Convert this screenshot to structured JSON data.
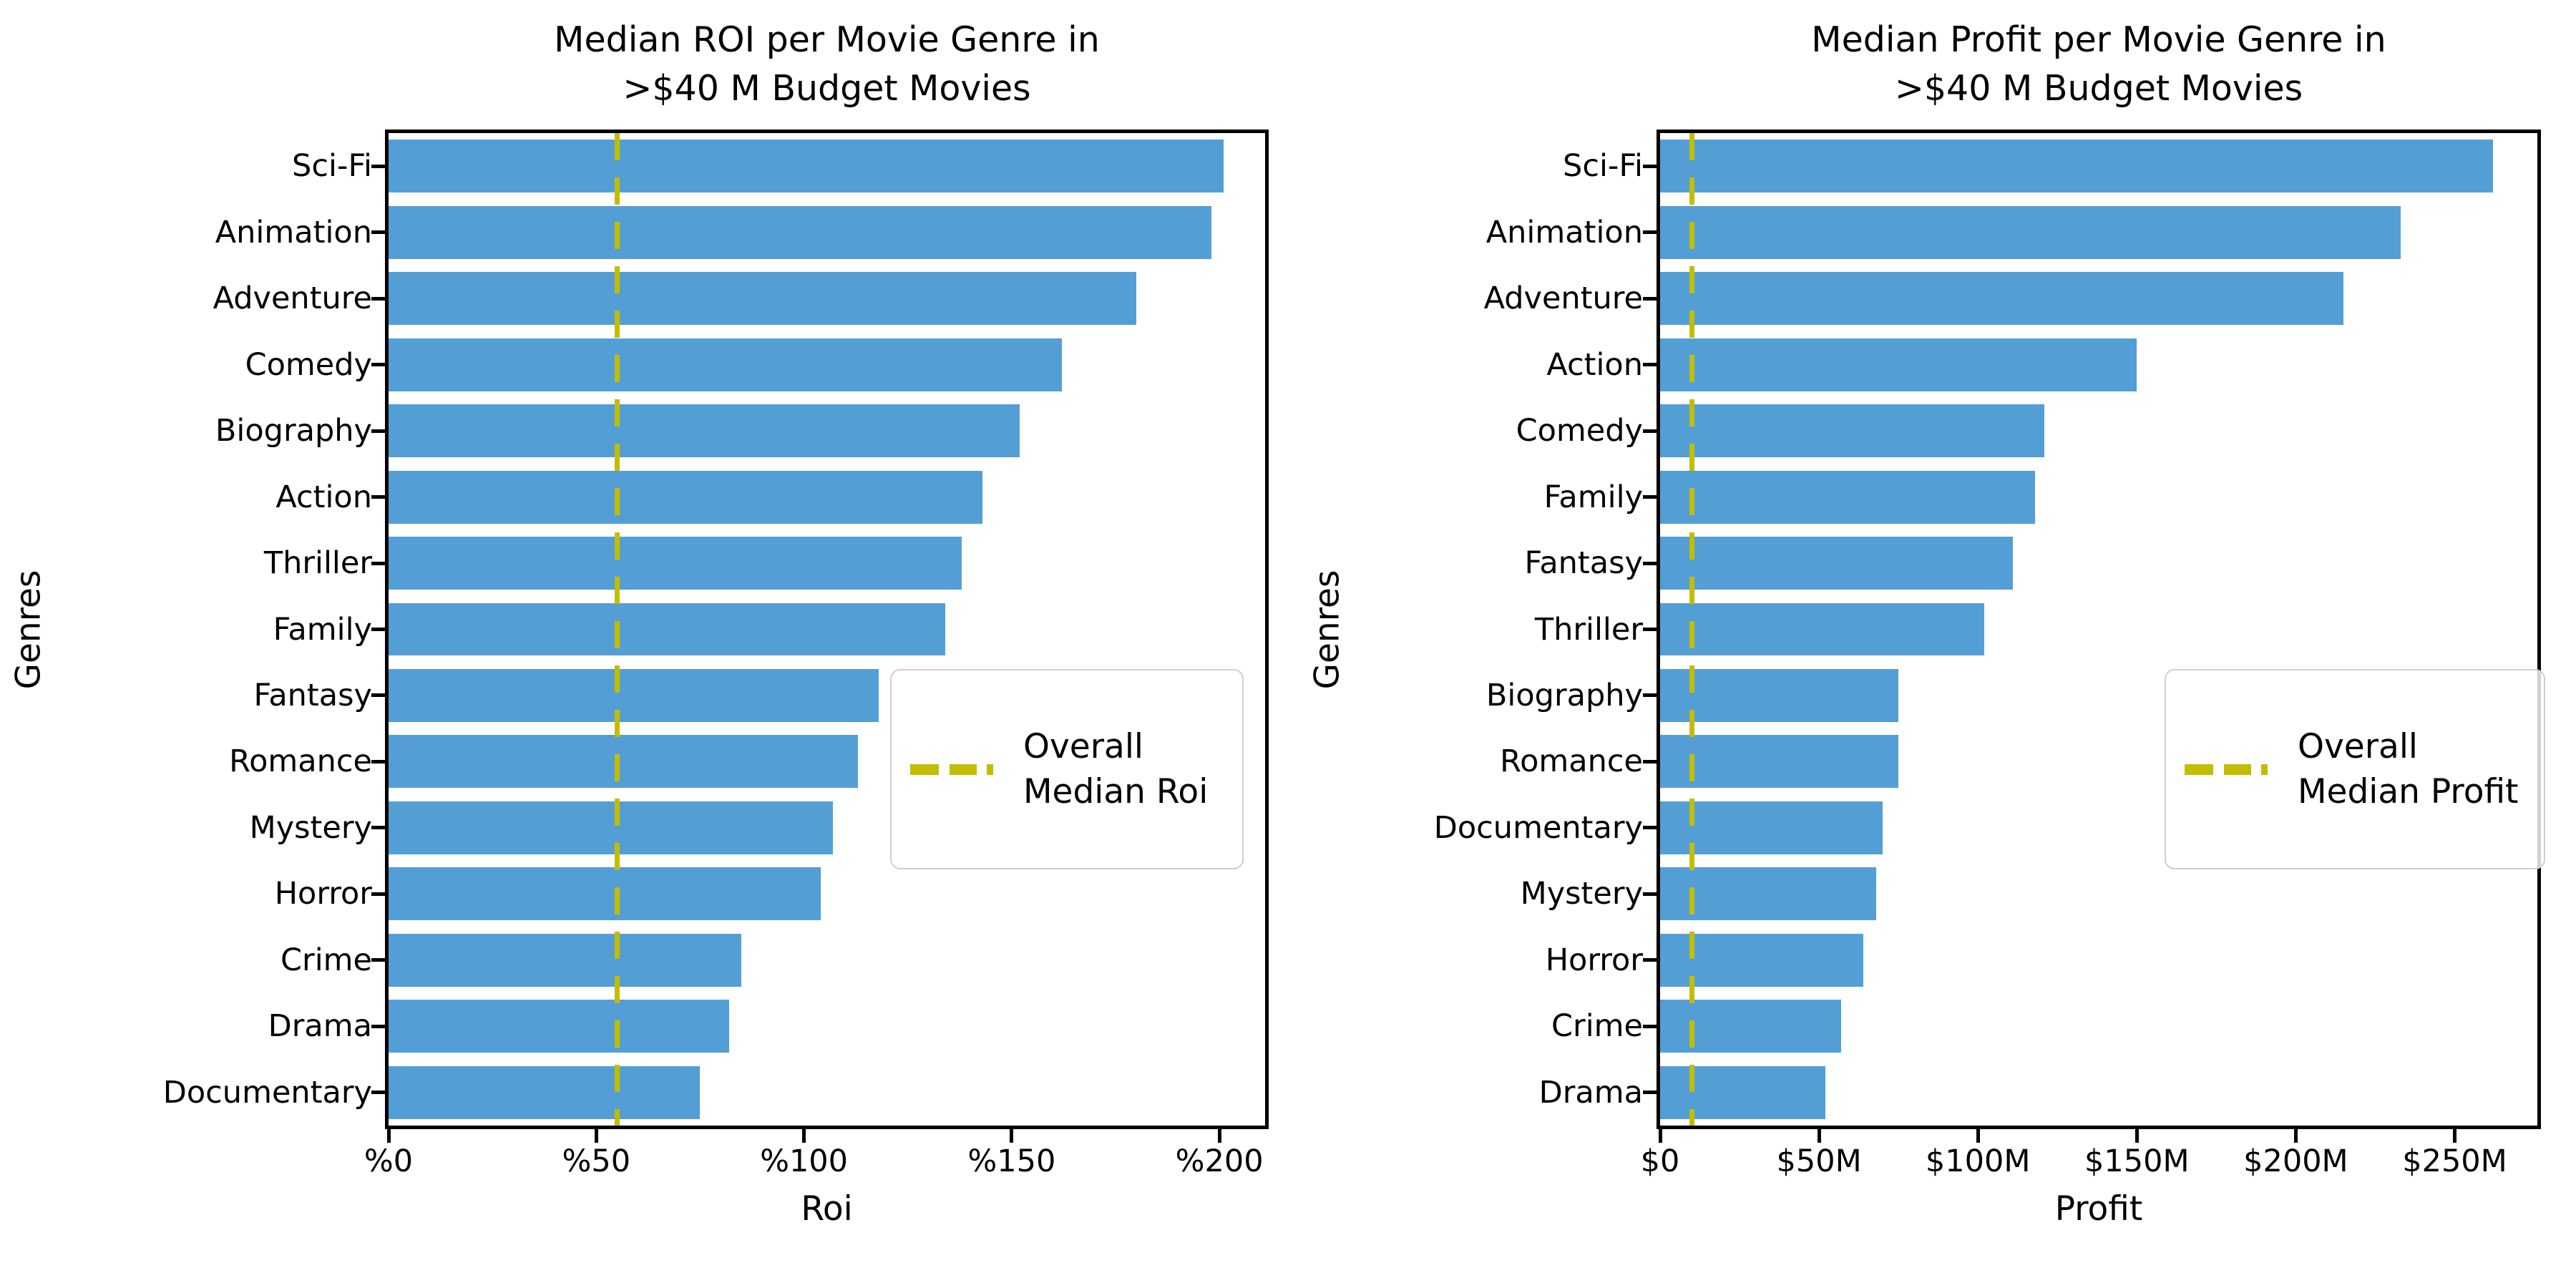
{
  "chart_data": [
    {
      "type": "bar",
      "orientation": "horizontal",
      "title": "Median ROI per Movie Genre in >$40 M Budget Movies",
      "title_lines": [
        "Median ROI per Movie Genre in",
        ">$40 M Budget Movies"
      ],
      "xlabel": "Roi",
      "ylabel": "Genres",
      "categories": [
        "Sci-Fi",
        "Animation",
        "Adventure",
        "Comedy",
        "Biography",
        "Action",
        "Thriller",
        "Family",
        "Fantasy",
        "Romance",
        "Mystery",
        "Horror",
        "Crime",
        "Drama",
        "Documentary"
      ],
      "values": [
        201,
        198,
        180,
        162,
        152,
        143,
        138,
        134,
        118,
        113,
        107,
        104,
        85,
        82,
        75
      ],
      "xticks": {
        "values": [
          0,
          50,
          100,
          150,
          200
        ],
        "labels": [
          "%0",
          "%50",
          "%100",
          "%150",
          "%200"
        ]
      },
      "xlim": [
        0,
        211
      ],
      "grid": false,
      "legend_position": "center right",
      "median_line": {
        "value": 55,
        "label_lines": [
          "Overall",
          "Median Roi"
        ],
        "label": "Overall Median Roi"
      },
      "bar_color": "#549ED6",
      "median_color": "#C2BD00"
    },
    {
      "type": "bar",
      "orientation": "horizontal",
      "title": "Median Profit per Movie Genre in >$40 M Budget Movies",
      "title_lines": [
        "Median Profit per Movie Genre in",
        ">$40 M Budget Movies"
      ],
      "xlabel": "Profit",
      "ylabel": "Genres",
      "categories": [
        "Sci-Fi",
        "Animation",
        "Adventure",
        "Action",
        "Comedy",
        "Family",
        "Fantasy",
        "Thriller",
        "Biography",
        "Romance",
        "Documentary",
        "Mystery",
        "Horror",
        "Crime",
        "Drama"
      ],
      "values": [
        262,
        233,
        215,
        150,
        121,
        118,
        111,
        102,
        75,
        75,
        70,
        68,
        64,
        57,
        52
      ],
      "values_unit": "$M",
      "xticks": {
        "values": [
          0,
          50,
          100,
          150,
          200,
          250
        ],
        "labels": [
          "$0",
          "$50M",
          "$100M",
          "$150M",
          "$200M",
          "$250M"
        ]
      },
      "xlim": [
        0,
        276
      ],
      "grid": false,
      "legend_position": "center right",
      "median_line": {
        "value": 10,
        "label_lines": [
          "Overall",
          "Median Profit"
        ],
        "label": "Overall Median Profit"
      },
      "bar_color": "#549ED6",
      "median_color": "#C2BD00"
    }
  ]
}
